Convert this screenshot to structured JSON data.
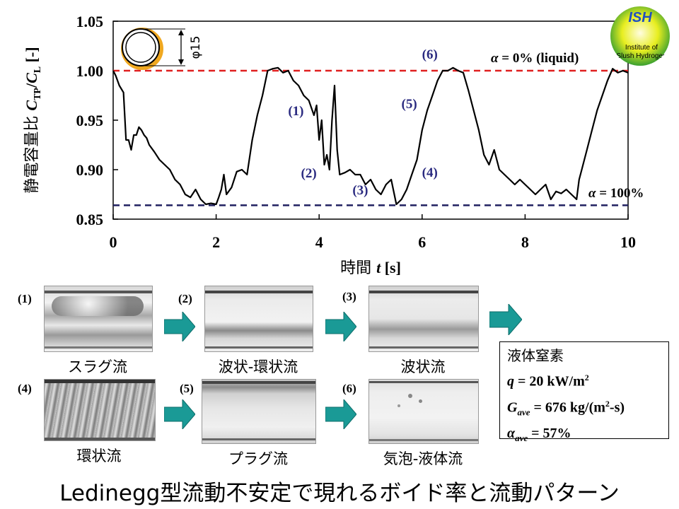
{
  "chart_data": {
    "type": "line",
    "ylabel": "静電容量比 CTP/CL [-]",
    "ylabel_prefix": "静電容量比 ",
    "ylabel_c1": "C",
    "ylabel_sub1": "TP",
    "ylabel_sep": "/",
    "ylabel_c2": "C",
    "ylabel_sub2": "L",
    "ylabel_unit": " [-]",
    "xlabel": "時間 t [s]",
    "xlabel_prefix": "時間 ",
    "xlabel_var": "t",
    "xlabel_unit": " [s]",
    "xlim": [
      0,
      10
    ],
    "ylim": [
      0.85,
      1.05
    ],
    "xticks": [
      "0",
      "2",
      "4",
      "6",
      "8",
      "10"
    ],
    "xtick_values": [
      0,
      2,
      4,
      6,
      8,
      10
    ],
    "yticks": [
      "0.85",
      "0.90",
      "0.95",
      "1.00",
      "1.05"
    ],
    "ytick_values": [
      0.85,
      0.9,
      0.95,
      1.0,
      1.05
    ],
    "series": [
      {
        "color": "#000000",
        "x": [
          0.0,
          0.05,
          0.12,
          0.2,
          0.25,
          0.3,
          0.35,
          0.4,
          0.45,
          0.5,
          0.55,
          0.6,
          0.65,
          0.7,
          0.8,
          0.9,
          1.0,
          1.1,
          1.2,
          1.3,
          1.4,
          1.5,
          1.6,
          1.7,
          1.8,
          1.9,
          2.0,
          2.05,
          2.1,
          2.15,
          2.2,
          2.3,
          2.4,
          2.5,
          2.6,
          2.7,
          2.8,
          2.9,
          3.0,
          3.1,
          3.2,
          3.3,
          3.4,
          3.5,
          3.6,
          3.7,
          3.8,
          3.9,
          3.95,
          4.0,
          4.05,
          4.1,
          4.15,
          4.2,
          4.25,
          4.3,
          4.35,
          4.4,
          4.5,
          4.6,
          4.7,
          4.8,
          4.9,
          5.0,
          5.1,
          5.2,
          5.3,
          5.4,
          5.5,
          5.6,
          5.7,
          5.8,
          5.9,
          6.0,
          6.1,
          6.2,
          6.3,
          6.4,
          6.5,
          6.6,
          6.7,
          6.8,
          6.9,
          7.0,
          7.1,
          7.2,
          7.3,
          7.4,
          7.5,
          7.6,
          7.7,
          7.8,
          7.9,
          8.0,
          8.1,
          8.2,
          8.3,
          8.4,
          8.5,
          8.6,
          8.7,
          8.8,
          8.9,
          9.0,
          9.05,
          9.1,
          9.2,
          9.3,
          9.4,
          9.5,
          9.6,
          9.7,
          9.8,
          9.9,
          10.0
        ],
        "y": [
          1.0,
          0.995,
          0.985,
          0.978,
          0.93,
          0.93,
          0.92,
          0.935,
          0.935,
          0.943,
          0.94,
          0.935,
          0.932,
          0.925,
          0.918,
          0.91,
          0.905,
          0.9,
          0.89,
          0.885,
          0.875,
          0.872,
          0.88,
          0.87,
          0.865,
          0.866,
          0.865,
          0.872,
          0.88,
          0.895,
          0.875,
          0.882,
          0.898,
          0.9,
          0.895,
          0.93,
          0.955,
          0.975,
          1.0,
          1.002,
          1.003,
          0.998,
          1.0,
          0.99,
          0.985,
          0.975,
          0.97,
          0.955,
          0.965,
          0.93,
          0.95,
          0.905,
          0.915,
          0.9,
          0.95,
          0.985,
          0.92,
          0.895,
          0.897,
          0.9,
          0.895,
          0.895,
          0.885,
          0.89,
          0.88,
          0.875,
          0.885,
          0.89,
          0.865,
          0.87,
          0.88,
          0.895,
          0.91,
          0.94,
          0.96,
          0.975,
          0.99,
          1.0,
          1.0,
          1.003,
          1.0,
          0.998,
          0.98,
          0.96,
          0.94,
          0.915,
          0.905,
          0.92,
          0.9,
          0.895,
          0.89,
          0.885,
          0.89,
          0.885,
          0.88,
          0.875,
          0.88,
          0.885,
          0.87,
          0.878,
          0.876,
          0.88,
          0.875,
          0.87,
          0.89,
          0.9,
          0.92,
          0.94,
          0.96,
          0.975,
          0.99,
          1.002,
          0.998,
          1.0,
          0.998
        ]
      }
    ],
    "reference_lines": [
      {
        "y": 1.0,
        "color": "#e02020",
        "dash": true,
        "label_var": "α",
        "label_text": " = 0% (liquid)"
      },
      {
        "y": 0.864,
        "color": "#202060",
        "dash": true,
        "label_var": "α",
        "label_text": " = 100%"
      }
    ],
    "annotations": [
      {
        "text": "(1)",
        "x": 3.55,
        "y": 0.955
      },
      {
        "text": "(2)",
        "x": 3.8,
        "y": 0.892
      },
      {
        "text": "(3)",
        "x": 4.8,
        "y": 0.875
      },
      {
        "text": "(4)",
        "x": 6.15,
        "y": 0.893
      },
      {
        "text": "(5)",
        "x": 5.75,
        "y": 0.962
      },
      {
        "text": "(6)",
        "x": 6.15,
        "y": 1.012
      }
    ],
    "grid": false,
    "legend": "none"
  },
  "pipe_inset": {
    "dimension_label": "φ15"
  },
  "logo": {
    "title": "ISH",
    "line1": "Institute of",
    "line2": "Slush Hydrogen"
  },
  "flow_patterns": [
    {
      "label": "(1)",
      "caption": "スラグ流"
    },
    {
      "label": "(2)",
      "caption": "波状-環状流"
    },
    {
      "label": "(3)",
      "caption": "波状流"
    },
    {
      "label": "(4)",
      "caption": "環状流"
    },
    {
      "label": "(5)",
      "caption": "プラグ流"
    },
    {
      "label": "(6)",
      "caption": "気泡-液体流"
    }
  ],
  "conditions": {
    "fluid": "液体窒素",
    "q_var": "q",
    "q_text": " = 20 kW/m",
    "q_sup": "2",
    "g_var": "G",
    "g_sub": "ave",
    "g_text1": " = 676 kg/(m",
    "g_sup": "2",
    "g_text2": "-s)",
    "a_var": "α",
    "a_sub": "ave",
    "a_text": " = 57%"
  },
  "title": "Ledinegg型流動不安定で現れるボイド率と流動パターン",
  "colors": {
    "arrow": "#1a9a96",
    "accent_red": "#e02020",
    "accent_navy": "#202060",
    "annotation": "#2a2a80"
  }
}
